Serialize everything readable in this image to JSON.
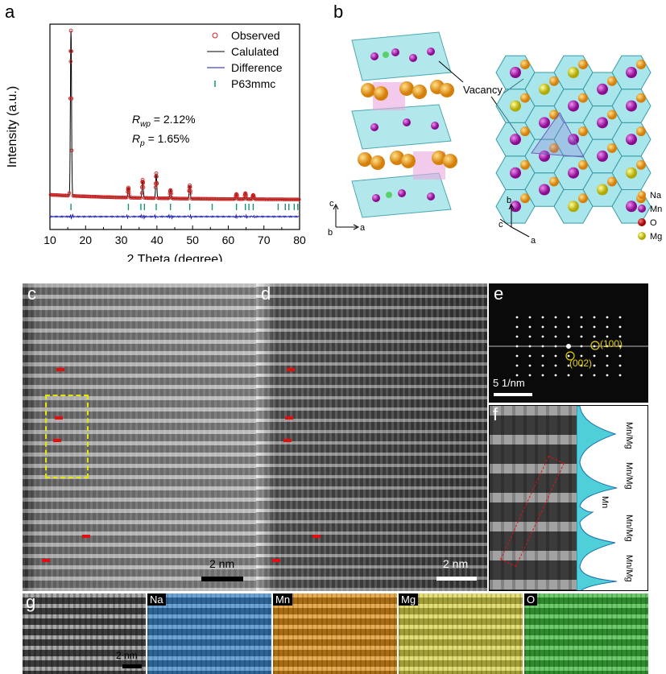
{
  "panels": {
    "a": "a",
    "b": "b",
    "c": "c",
    "d": "d",
    "e": "e",
    "f": "f",
    "g": "g"
  },
  "chart_data": {
    "type": "line",
    "xlabel": "2 Theta (degree)",
    "ylabel": "Intensity (a.u.)",
    "xlim": [
      10,
      80
    ],
    "x_ticks": [
      "10",
      "20",
      "30",
      "40",
      "50",
      "60",
      "70",
      "80"
    ],
    "legend": [
      "Observed",
      "Calulated",
      "Difference",
      "P63mmc"
    ],
    "legend_placement": "top-right",
    "annotation_rwp_label": "R",
    "annotation_rwp_sub": "wp",
    "annotation_rwp_value": " = 2.12%",
    "annotation_rp_label": "R",
    "annotation_rp_sub": "p",
    "annotation_rp_value": " = 1.65%",
    "peaks": [
      {
        "x": 15.9,
        "y": 1.0
      },
      {
        "x": 32.0,
        "y": 0.06
      },
      {
        "x": 36.0,
        "y": 0.11
      },
      {
        "x": 39.8,
        "y": 0.15
      },
      {
        "x": 43.8,
        "y": 0.05
      },
      {
        "x": 49.2,
        "y": 0.08
      },
      {
        "x": 62.3,
        "y": 0.03
      },
      {
        "x": 64.8,
        "y": 0.035
      },
      {
        "x": 67.0,
        "y": 0.025
      }
    ],
    "bragg_positions": [
      15.9,
      32.0,
      35.5,
      36.5,
      39.8,
      43.8,
      49.2,
      55.5,
      62.3,
      64.8,
      65.8,
      67.0,
      74.0,
      76.0,
      77.0,
      78.5,
      79.5
    ],
    "colors": {
      "observed": "#cc2222",
      "calculated": "#000000",
      "difference": "#1a1aaa",
      "bragg": "#1a8f7a"
    }
  },
  "structure": {
    "vacancy_label": "Vacancy",
    "axes_left": {
      "c": "c",
      "b": "b",
      "a": "a"
    },
    "axes_right": {
      "b": "b",
      "c": "c",
      "a": "a"
    },
    "legend": [
      {
        "name": "Na",
        "color": "#f0a020"
      },
      {
        "name": "Mn",
        "color": "#c020c0"
      },
      {
        "name": "O",
        "color": "#dd1010"
      },
      {
        "name": "Mg",
        "color": "#e8e020"
      }
    ]
  },
  "stem": {
    "scale_c": "2 nm",
    "scale_d": "2 nm",
    "fft_scale": "5 1/nm",
    "fft_spot1": "(100)",
    "fft_spot2": "(002)",
    "profile_labels": [
      "Mn/Mg",
      "Mn/Mg",
      "Mn",
      "Mn/Mg",
      "Mn/Mg"
    ]
  },
  "eds": {
    "scale_g": "2 nm",
    "maps": [
      {
        "name": "Na",
        "color": "#3c86c8"
      },
      {
        "name": "Mn",
        "color": "#e0901a"
      },
      {
        "name": "Mg",
        "color": "#d9d24a"
      },
      {
        "name": "O",
        "color": "#3cb83c"
      }
    ]
  }
}
